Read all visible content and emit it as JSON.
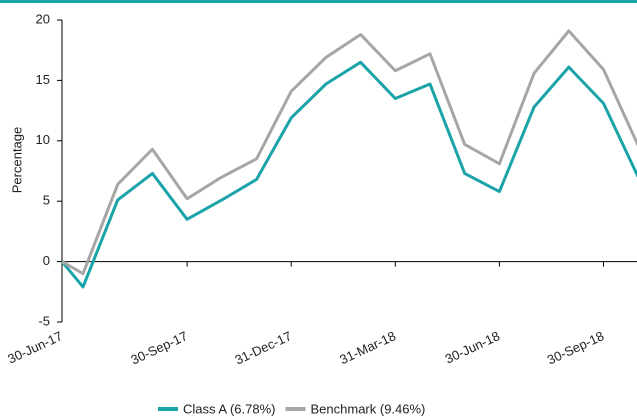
{
  "chart_data": {
    "type": "line",
    "y_label": "Percentage",
    "categories": [
      "30-Jun-17",
      null,
      null,
      null,
      "30-Sep-17",
      null,
      null,
      "31-Dec-17",
      null,
      null,
      "31-Mar-18",
      null,
      null,
      "30-Jun-18",
      null,
      null,
      "30-Sep-18",
      null
    ],
    "series": [
      {
        "name": "Class A (6.78%)",
        "color": "#1aa3a8",
        "values": [
          0,
          -2.1,
          5.1,
          7.3,
          3.5,
          5.1,
          6.8,
          11.9,
          14.7,
          16.5,
          13.5,
          14.7,
          7.3,
          5.8,
          12.8,
          16.1,
          13.1,
          7.0
        ]
      },
      {
        "name": "Benchmark (9.46%)",
        "color": "#a6a6a6",
        "values": [
          0,
          -1.0,
          6.4,
          9.3,
          5.2,
          7.0,
          8.5,
          14.1,
          16.9,
          18.8,
          15.8,
          17.2,
          9.7,
          8.1,
          15.6,
          19.1,
          15.9,
          9.6
        ]
      }
    ],
    "ylim": [
      -5,
      20
    ],
    "yticks": [
      -5,
      0,
      5,
      10,
      15,
      20
    ],
    "grid": false
  }
}
